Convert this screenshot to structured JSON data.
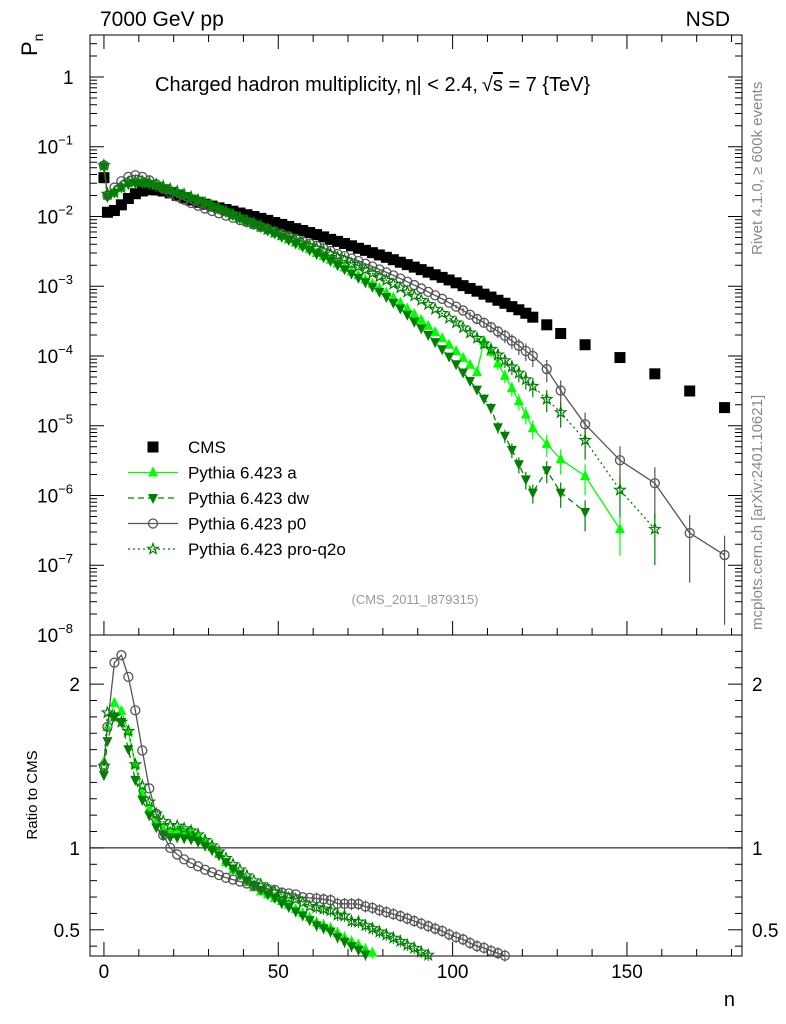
{
  "header": {
    "left": "7000 GeV pp",
    "right": "NSD"
  },
  "side_labels": {
    "rivet": "Rivet 4.1.0, ≥ 600k events",
    "mcplots": "mcplots.cern.ch [arXiv:2401.10621]"
  },
  "chart_data": [
    {
      "type": "scatter",
      "title": "Charged hadron multiplicity, |η| < 2.4, √s = 7 {TeV}",
      "title_parts": {
        "pre": "Charged hadron multiplicity,",
        "eta": "η",
        "mid": "| < 2.4,",
        "sqrt": "√",
        "s": "s",
        "post": " = 7 {TeV}"
      },
      "ylabel": "P",
      "ylabel_sub": "n",
      "yscale": "log",
      "ylim": [
        1e-08,
        4
      ],
      "xlim": [
        -4,
        183
      ],
      "yticks": [
        {
          "v": 1,
          "base": "1",
          "exp": ""
        },
        {
          "v": 0.1,
          "base": "10",
          "exp": "−1"
        },
        {
          "v": 0.01,
          "base": "10",
          "exp": "−2"
        },
        {
          "v": 0.001,
          "base": "10",
          "exp": "−3"
        },
        {
          "v": 0.0001,
          "base": "10",
          "exp": "−4"
        },
        {
          "v": 1e-05,
          "base": "10",
          "exp": "−5"
        },
        {
          "v": 1e-06,
          "base": "10",
          "exp": "−6"
        },
        {
          "v": 1e-07,
          "base": "10",
          "exp": "−7"
        },
        {
          "v": 1e-08,
          "base": "10",
          "exp": "−8"
        }
      ],
      "annotation": "(CMS_2011_I879315)",
      "legend_position": "lower-left",
      "series": [
        {
          "name": "CMS",
          "marker": "square",
          "color": "#000000",
          "line": "none",
          "x": [
            0,
            1,
            3,
            5,
            7,
            9,
            11,
            13,
            15,
            17,
            19,
            21,
            23,
            25,
            27,
            29,
            31,
            33,
            35,
            37,
            39,
            41,
            43,
            45,
            47,
            49,
            51,
            53,
            55,
            57,
            59,
            61,
            63,
            65,
            67,
            69,
            71,
            73,
            75,
            77,
            79,
            81,
            83,
            85,
            87,
            89,
            91,
            93,
            95,
            97,
            99,
            101,
            103,
            105,
            107,
            109,
            111,
            113,
            115,
            117,
            119,
            121,
            123,
            127,
            131,
            138,
            148,
            158,
            168,
            178
          ],
          "y": [
            0.036,
            0.0115,
            0.0122,
            0.0147,
            0.0181,
            0.0212,
            0.0232,
            0.0242,
            0.024,
            0.0232,
            0.0218,
            0.0201,
            0.0186,
            0.0172,
            0.016,
            0.015,
            0.0141,
            0.0133,
            0.0126,
            0.0119,
            0.0112,
            0.0106,
            0.01,
            0.0094,
            0.0088,
            0.0082,
            0.0077,
            0.0072,
            0.0067,
            0.0063,
            0.0059,
            0.0055,
            0.0051,
            0.0047,
            0.0044,
            0.0041,
            0.0038,
            0.0035,
            0.00327,
            0.00303,
            0.00281,
            0.0026,
            0.0024,
            0.00221,
            0.00204,
            0.00188,
            0.00173,
            0.00159,
            0.00146,
            0.00134,
            0.00123,
            0.00112,
            0.00102,
            0.00093,
            0.00085,
            0.00077,
            0.0007,
            0.00063,
            0.00057,
            0.00051,
            0.00046,
            0.00041,
            0.00036,
            0.00028,
            0.00021,
            0.000145,
            9.5e-05,
            5.55e-05,
            3.15e-05,
            1.82e-05
          ]
        },
        {
          "name": "Pythia 6.423 a",
          "marker": "triangle-up",
          "color": "#00ff00",
          "line": "solid",
          "x": [
            0,
            1,
            3,
            5,
            7,
            9,
            11,
            13,
            15,
            17,
            19,
            21,
            23,
            25,
            27,
            29,
            31,
            33,
            35,
            37,
            39,
            41,
            43,
            45,
            47,
            49,
            51,
            53,
            55,
            57,
            59,
            61,
            63,
            65,
            67,
            69,
            71,
            73,
            75,
            77,
            79,
            81,
            83,
            85,
            87,
            89,
            91,
            93,
            95,
            97,
            99,
            101,
            103,
            105,
            107,
            109,
            111,
            113,
            115,
            117,
            119,
            121,
            123,
            127,
            131,
            138,
            148
          ],
          "y": [
            0.055,
            0.02,
            0.023,
            0.027,
            0.031,
            0.032,
            0.031,
            0.03,
            0.028,
            0.026,
            0.024,
            0.0222,
            0.0204,
            0.0188,
            0.0172,
            0.0157,
            0.0142,
            0.0128,
            0.0115,
            0.0103,
            0.0093,
            0.0084,
            0.0076,
            0.0069,
            0.0063,
            0.0057,
            0.0052,
            0.0047,
            0.0042,
            0.0038,
            0.0034,
            0.003,
            0.0027,
            0.0024,
            0.00212,
            0.00186,
            0.00163,
            0.00143,
            0.00125,
            0.00109,
            0.00094,
            0.00081,
            0.00069,
            0.00058,
            0.00048,
            0.0004,
            0.00033,
            0.00027,
            0.00022,
            0.00018,
            0.000145,
            0.000118,
            9.4e-05,
            7.5e-05,
            5.9e-05,
            0.000165,
            0.000115,
            7.8e-05,
            5.2e-05,
            3.45e-05,
            2.25e-05,
            1.45e-05,
            9.2e-06,
            5.5e-06,
            3.3e-06,
            1.9e-06,
            3.3e-07
          ]
        },
        {
          "name": "Pythia 6.423 dw",
          "marker": "triangle-down",
          "color": "#008000",
          "line": "dashed",
          "x": [
            0,
            1,
            3,
            5,
            7,
            9,
            11,
            13,
            15,
            17,
            19,
            21,
            23,
            25,
            27,
            29,
            31,
            33,
            35,
            37,
            39,
            41,
            43,
            45,
            47,
            49,
            51,
            53,
            55,
            57,
            59,
            61,
            63,
            65,
            67,
            69,
            71,
            73,
            75,
            77,
            79,
            81,
            83,
            85,
            87,
            89,
            91,
            93,
            95,
            97,
            99,
            101,
            103,
            105,
            107,
            109,
            111,
            113,
            115,
            117,
            119,
            121,
            123,
            127,
            131,
            138
          ],
          "y": [
            0.052,
            0.019,
            0.022,
            0.026,
            0.029,
            0.03,
            0.03,
            0.029,
            0.027,
            0.025,
            0.0232,
            0.0214,
            0.0197,
            0.0181,
            0.0166,
            0.0152,
            0.0139,
            0.0127,
            0.0115,
            0.0104,
            0.0094,
            0.0085,
            0.0077,
            0.007,
            0.0063,
            0.0057,
            0.0051,
            0.0046,
            0.0041,
            0.0037,
            0.0033,
            0.0029,
            0.0026,
            0.0023,
            0.002,
            0.00175,
            0.00152,
            0.00132,
            0.00114,
            0.00098,
            0.00083,
            0.0007,
            0.00058,
            0.00048,
            0.00039,
            0.00031,
            0.00025,
            0.0002,
            0.000158,
            0.000125,
            9.8e-05,
            7.6e-05,
            5.8e-05,
            4.4e-05,
            3.3e-05,
            2.45e-05,
            1.8e-05,
            9.5e-06,
            7.2e-06,
            4.5e-06,
            2.8e-06,
            1.7e-06,
            1.1e-06,
            2.3e-06,
            1.1e-06,
            5.8e-07
          ]
        },
        {
          "name": "Pythia 6.423 p0",
          "marker": "circle-open",
          "color": "#555555",
          "line": "solid",
          "x": [
            0,
            1,
            3,
            5,
            7,
            9,
            11,
            13,
            15,
            17,
            19,
            21,
            23,
            25,
            27,
            29,
            31,
            33,
            35,
            37,
            39,
            41,
            43,
            45,
            47,
            49,
            51,
            53,
            55,
            57,
            59,
            61,
            63,
            65,
            67,
            69,
            71,
            73,
            75,
            77,
            79,
            81,
            83,
            85,
            87,
            89,
            91,
            93,
            95,
            97,
            99,
            101,
            103,
            105,
            107,
            109,
            111,
            113,
            115,
            117,
            119,
            121,
            123,
            127,
            131,
            138,
            148,
            158,
            168,
            178
          ],
          "y": [
            0.054,
            0.02,
            0.026,
            0.032,
            0.037,
            0.039,
            0.037,
            0.033,
            0.029,
            0.025,
            0.0218,
            0.0193,
            0.0173,
            0.0156,
            0.0142,
            0.013,
            0.012,
            0.0111,
            0.0103,
            0.0096,
            0.0089,
            0.0083,
            0.0077,
            0.0071,
            0.0066,
            0.0061,
            0.0056,
            0.0052,
            0.0048,
            0.0044,
            0.0041,
            0.0038,
            0.0035,
            0.0032,
            0.0029,
            0.0027,
            0.0025,
            0.0023,
            0.0021,
            0.00192,
            0.00174,
            0.00158,
            0.00143,
            0.00129,
            0.00116,
            0.00104,
            0.00093,
            0.00083,
            0.00074,
            0.00066,
            0.00058,
            0.00051,
            0.00045,
            0.00039,
            0.00034,
            0.0003,
            0.00026,
            0.000225,
            0.000195,
            0.000165,
            0.00014,
            0.000118,
            0.0001,
            6.5e-05,
            3.2e-05,
            1.05e-05,
            3.2e-06,
            1.5e-06,
            2.9e-07,
            1.4e-07
          ]
        },
        {
          "name": "Pythia 6.423 pro-q2o",
          "marker": "star-open",
          "color": "#008000",
          "line": "dotted",
          "x": [
            0,
            1,
            3,
            5,
            7,
            9,
            11,
            13,
            15,
            17,
            19,
            21,
            23,
            25,
            27,
            29,
            31,
            33,
            35,
            37,
            39,
            41,
            43,
            45,
            47,
            49,
            51,
            53,
            55,
            57,
            59,
            61,
            63,
            65,
            67,
            69,
            71,
            73,
            75,
            77,
            79,
            81,
            83,
            85,
            87,
            89,
            91,
            93,
            95,
            97,
            99,
            101,
            103,
            105,
            107,
            109,
            111,
            113,
            115,
            117,
            119,
            121,
            123,
            127,
            131,
            138,
            148,
            158
          ],
          "y": [
            0.054,
            0.021,
            0.022,
            0.026,
            0.031,
            0.032,
            0.032,
            0.031,
            0.029,
            0.027,
            0.0248,
            0.0228,
            0.0208,
            0.019,
            0.0173,
            0.0157,
            0.0143,
            0.013,
            0.0118,
            0.0107,
            0.0097,
            0.0088,
            0.008,
            0.0073,
            0.0066,
            0.006,
            0.0055,
            0.005,
            0.0046,
            0.0042,
            0.0038,
            0.0035,
            0.0032,
            0.0029,
            0.0026,
            0.0024,
            0.0021,
            0.00192,
            0.00172,
            0.00154,
            0.00137,
            0.00122,
            0.00108,
            0.00095,
            0.00083,
            0.00073,
            0.00063,
            0.00055,
            0.00047,
            0.00041,
            0.00035,
            0.0003,
            0.000255,
            0.000215,
            0.00018,
            0.00015,
            0.000125,
            0.000104,
            8.6e-05,
            7e-05,
            5.7e-05,
            4.6e-05,
            3.7e-05,
            2.4e-05,
            1.55e-05,
            6.2e-06,
            1.2e-06,
            3.3e-07
          ]
        }
      ]
    },
    {
      "type": "scatter",
      "ylabel": "Ratio to CMS",
      "xlabel": "n",
      "ylim": [
        0.34,
        2.3
      ],
      "xlim": [
        -4,
        183
      ],
      "yticks": [
        {
          "v": 0.5,
          "label": "0.5"
        },
        {
          "v": 1,
          "label": "1"
        },
        {
          "v": 2,
          "label": "2"
        }
      ],
      "xticks": [
        {
          "v": 0,
          "label": "0"
        },
        {
          "v": 50,
          "label": "50"
        },
        {
          "v": 100,
          "label": "100"
        },
        {
          "v": 150,
          "label": "150"
        }
      ],
      "reference_line": 1
    }
  ]
}
